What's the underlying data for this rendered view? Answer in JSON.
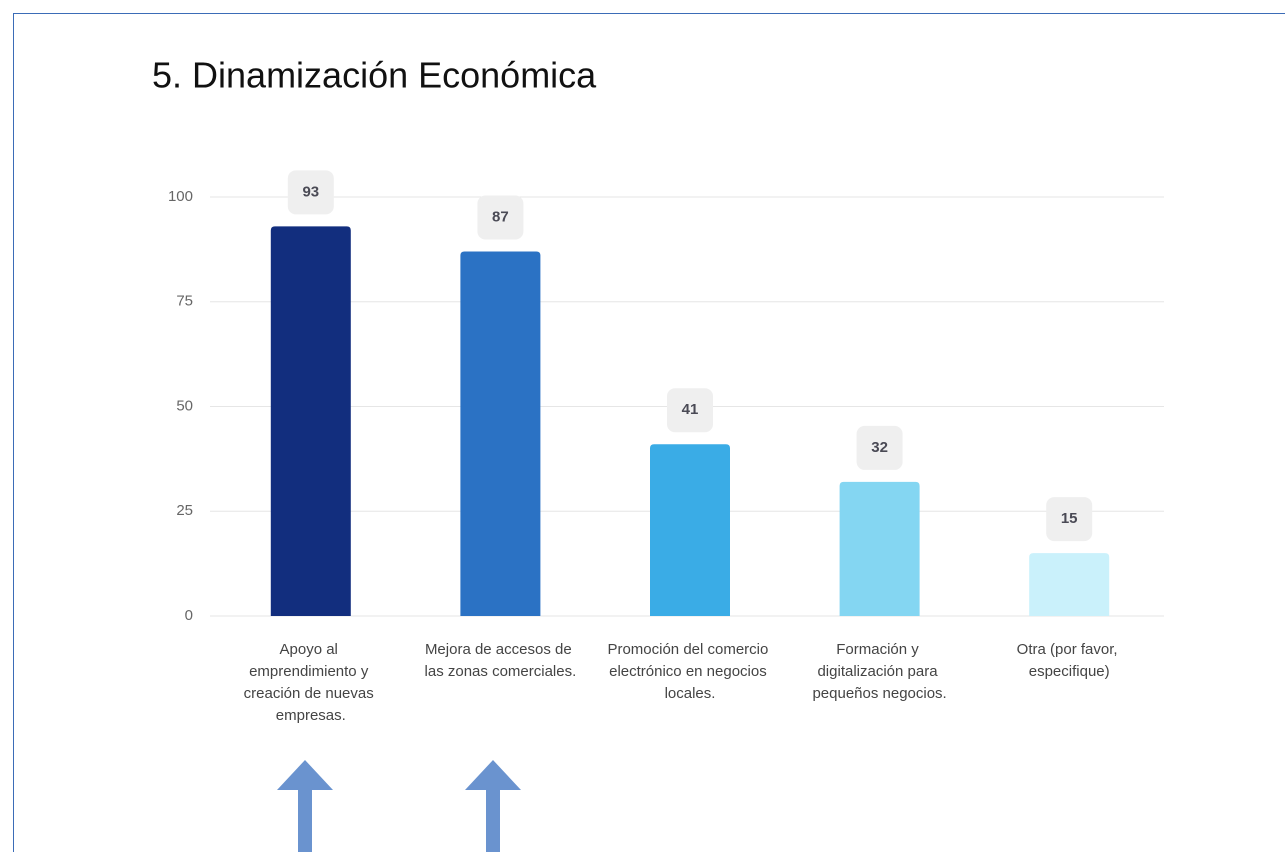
{
  "chart_data": {
    "type": "bar",
    "title": "5. Dinamización Económica",
    "categories": [
      "Apoyo al emprendimiento y creación de nuevas empresas.",
      "Mejora de accesos de las zonas comerciales.",
      "Promoción del comercio electrónico en negocios locales.",
      "Formación y digitalización para pequeños negocios.",
      "Otra (por favor, especifique)"
    ],
    "values": [
      93,
      87,
      41,
      32,
      15
    ],
    "colors": [
      "#122e7e",
      "#2b72c4",
      "#3aace6",
      "#84d6f2",
      "#caf1fb"
    ],
    "ylim": [
      0,
      100
    ],
    "yticks": [
      0,
      25,
      50,
      75,
      100
    ],
    "grid": true
  }
}
